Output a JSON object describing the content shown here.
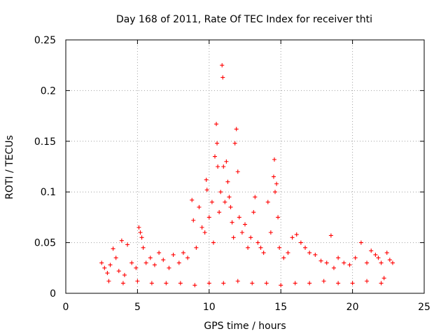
{
  "chart_data": {
    "type": "scatter",
    "title": "Day 168 of 2011, Rate Of TEC Index for receiver thti",
    "xlabel": "GPS time / hours",
    "ylabel": "ROTI / TECUs",
    "xlim": [
      0,
      25
    ],
    "ylim": [
      0,
      0.25
    ],
    "xticks": [
      0,
      5,
      10,
      15,
      20,
      25
    ],
    "xtick_labels": [
      "0",
      "5",
      "10",
      "15",
      "20",
      "25"
    ],
    "yticks": [
      0,
      0.05,
      0.1,
      0.15,
      0.2,
      0.25
    ],
    "ytick_labels": [
      "0",
      "0.05",
      "0.1",
      "0.15",
      "0.2",
      "0.25"
    ],
    "grid": true,
    "marker": "+",
    "color": "#ff0000",
    "series": [
      {
        "name": "ROTI",
        "points": [
          [
            2.5,
            0.03
          ],
          [
            2.7,
            0.025
          ],
          [
            2.9,
            0.02
          ],
          [
            3.1,
            0.028
          ],
          [
            3.3,
            0.044
          ],
          [
            3.5,
            0.035
          ],
          [
            3.7,
            0.022
          ],
          [
            3.9,
            0.052
          ],
          [
            4.1,
            0.018
          ],
          [
            4.3,
            0.048
          ],
          [
            4.6,
            0.03
          ],
          [
            4.9,
            0.025
          ],
          [
            5.1,
            0.065
          ],
          [
            5.2,
            0.06
          ],
          [
            5.3,
            0.055
          ],
          [
            5.4,
            0.045
          ],
          [
            5.6,
            0.03
          ],
          [
            5.9,
            0.035
          ],
          [
            6.2,
            0.028
          ],
          [
            6.5,
            0.04
          ],
          [
            6.8,
            0.033
          ],
          [
            7.2,
            0.025
          ],
          [
            7.5,
            0.038
          ],
          [
            7.9,
            0.03
          ],
          [
            8.2,
            0.04
          ],
          [
            8.5,
            0.035
          ],
          [
            8.8,
            0.092
          ],
          [
            8.9,
            0.072
          ],
          [
            9.1,
            0.045
          ],
          [
            9.3,
            0.085
          ],
          [
            9.5,
            0.065
          ],
          [
            9.7,
            0.06
          ],
          [
            9.8,
            0.112
          ],
          [
            9.85,
            0.102
          ],
          [
            10.0,
            0.075
          ],
          [
            10.2,
            0.09
          ],
          [
            10.3,
            0.05
          ],
          [
            10.4,
            0.135
          ],
          [
            10.5,
            0.167
          ],
          [
            10.55,
            0.148
          ],
          [
            10.6,
            0.125
          ],
          [
            10.7,
            0.08
          ],
          [
            10.8,
            0.1
          ],
          [
            10.9,
            0.225
          ],
          [
            10.95,
            0.213
          ],
          [
            11.0,
            0.125
          ],
          [
            11.1,
            0.09
          ],
          [
            11.2,
            0.13
          ],
          [
            11.3,
            0.11
          ],
          [
            11.4,
            0.095
          ],
          [
            11.5,
            0.085
          ],
          [
            11.6,
            0.07
          ],
          [
            11.7,
            0.055
          ],
          [
            11.8,
            0.148
          ],
          [
            11.9,
            0.162
          ],
          [
            12.0,
            0.12
          ],
          [
            12.1,
            0.075
          ],
          [
            12.3,
            0.06
          ],
          [
            12.5,
            0.068
          ],
          [
            12.7,
            0.045
          ],
          [
            12.9,
            0.055
          ],
          [
            13.1,
            0.08
          ],
          [
            13.2,
            0.095
          ],
          [
            13.4,
            0.05
          ],
          [
            13.6,
            0.045
          ],
          [
            13.8,
            0.04
          ],
          [
            14.1,
            0.09
          ],
          [
            14.3,
            0.06
          ],
          [
            14.5,
            0.115
          ],
          [
            14.55,
            0.132
          ],
          [
            14.6,
            0.1
          ],
          [
            14.7,
            0.108
          ],
          [
            14.8,
            0.075
          ],
          [
            14.9,
            0.045
          ],
          [
            15.2,
            0.035
          ],
          [
            15.5,
            0.04
          ],
          [
            15.8,
            0.055
          ],
          [
            16.1,
            0.058
          ],
          [
            16.4,
            0.05
          ],
          [
            16.7,
            0.045
          ],
          [
            17.0,
            0.04
          ],
          [
            17.4,
            0.038
          ],
          [
            17.8,
            0.032
          ],
          [
            18.2,
            0.03
          ],
          [
            18.5,
            0.057
          ],
          [
            18.7,
            0.025
          ],
          [
            19.0,
            0.035
          ],
          [
            19.4,
            0.03
          ],
          [
            19.8,
            0.028
          ],
          [
            20.2,
            0.035
          ],
          [
            20.6,
            0.05
          ],
          [
            21.0,
            0.03
          ],
          [
            21.3,
            0.042
          ],
          [
            21.6,
            0.038
          ],
          [
            21.8,
            0.035
          ],
          [
            22.0,
            0.03
          ],
          [
            22.2,
            0.015
          ],
          [
            22.4,
            0.04
          ],
          [
            22.6,
            0.033
          ],
          [
            22.8,
            0.03
          ],
          [
            3.0,
            0.012
          ],
          [
            4.0,
            0.01
          ],
          [
            5.0,
            0.012
          ],
          [
            6.0,
            0.01
          ],
          [
            7.0,
            0.01
          ],
          [
            8.0,
            0.01
          ],
          [
            9.0,
            0.008
          ],
          [
            10.0,
            0.01
          ],
          [
            11.0,
            0.01
          ],
          [
            12.0,
            0.012
          ],
          [
            13.0,
            0.01
          ],
          [
            14.0,
            0.01
          ],
          [
            15.0,
            0.008
          ],
          [
            16.0,
            0.01
          ],
          [
            17.0,
            0.01
          ],
          [
            18.0,
            0.012
          ],
          [
            19.0,
            0.01
          ],
          [
            20.0,
            0.01
          ],
          [
            21.0,
            0.012
          ],
          [
            22.0,
            0.01
          ]
        ]
      }
    ]
  }
}
